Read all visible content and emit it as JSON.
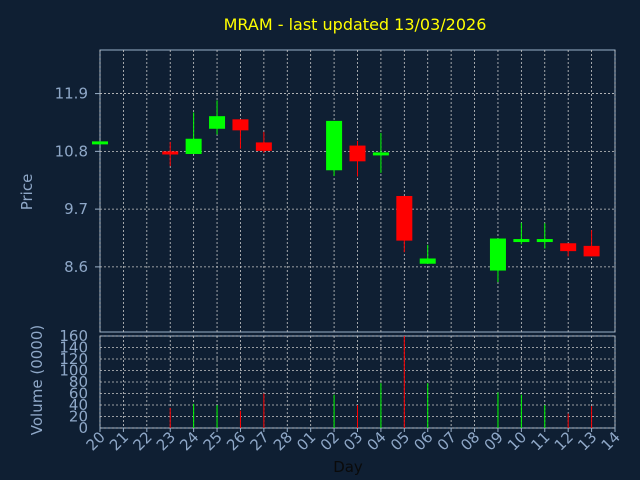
{
  "chart_data": {
    "type": "candlestick",
    "title": "MRAM - last updated 13/03/2026",
    "ylabel": "Price",
    "xlabel": "Day",
    "volume_label": "Volume (0000)",
    "x_ticks": [
      "20",
      "21",
      "22",
      "23",
      "24",
      "25",
      "26",
      "27",
      "28",
      "01",
      "02",
      "03",
      "04",
      "05",
      "06",
      "07",
      "08",
      "09",
      "10",
      "11",
      "12",
      "13",
      "14"
    ],
    "price_ticks": [
      8.6,
      9.7,
      10.8,
      11.9
    ],
    "price_tick_labels": [
      "8.6",
      "9.7",
      "10.8",
      "11.9"
    ],
    "price_range": [
      7.36,
      12.73
    ],
    "volume_ticks": [
      0,
      20,
      40,
      60,
      80,
      100,
      120,
      140,
      160
    ],
    "volume_tick_labels": [
      "0",
      "20",
      "40",
      "60",
      "80",
      "100",
      "120",
      "140",
      "160"
    ],
    "volume_range": [
      0,
      160
    ],
    "grid": true,
    "candles": [
      {
        "day": "20",
        "open": 10.95,
        "close": 10.99,
        "high": 10.99,
        "low": 10.95
      },
      {
        "day": "23",
        "open": 10.8,
        "close": 10.74,
        "high": 10.98,
        "low": 10.52
      },
      {
        "day": "24",
        "open": 10.75,
        "close": 11.04,
        "high": 11.54,
        "low": 10.75
      },
      {
        "day": "25",
        "open": 11.23,
        "close": 11.47,
        "high": 11.77,
        "low": 11.12
      },
      {
        "day": "26",
        "open": 11.41,
        "close": 11.2,
        "high": 11.41,
        "low": 10.85
      },
      {
        "day": "27",
        "open": 10.97,
        "close": 10.81,
        "high": 11.17,
        "low": 10.77
      },
      {
        "day": "02",
        "open": 10.44,
        "close": 11.38,
        "high": 11.38,
        "low": 10.33
      },
      {
        "day": "03",
        "open": 10.91,
        "close": 10.61,
        "high": 11.0,
        "low": 10.32
      },
      {
        "day": "04",
        "open": 10.74,
        "close": 10.78,
        "high": 11.15,
        "low": 10.39
      },
      {
        "day": "05",
        "open": 9.95,
        "close": 9.1,
        "high": 9.95,
        "low": 8.88
      },
      {
        "day": "06",
        "open": 8.66,
        "close": 8.76,
        "high": 9.02,
        "low": 8.66
      },
      {
        "day": "09",
        "open": 8.53,
        "close": 9.14,
        "high": 9.14,
        "low": 8.31
      },
      {
        "day": "10",
        "open": 9.12,
        "close": 9.13,
        "high": 9.44,
        "low": 9.03
      },
      {
        "day": "11",
        "open": 9.12,
        "close": 9.13,
        "high": 9.43,
        "low": 8.95
      },
      {
        "day": "12",
        "open": 9.05,
        "close": 8.9,
        "high": 9.05,
        "low": 8.8
      },
      {
        "day": "13",
        "open": 9.0,
        "close": 8.8,
        "high": 9.3,
        "low": 8.8
      }
    ],
    "volumes": [
      {
        "day": "23",
        "value": 35
      },
      {
        "day": "24",
        "value": 42
      },
      {
        "day": "25",
        "value": 40
      },
      {
        "day": "26",
        "value": 30
      },
      {
        "day": "27",
        "value": 60
      },
      {
        "day": "02",
        "value": 58
      },
      {
        "day": "03",
        "value": 40
      },
      {
        "day": "04",
        "value": 78
      },
      {
        "day": "05",
        "value": 160
      },
      {
        "day": "06",
        "value": 78
      },
      {
        "day": "09",
        "value": 62
      },
      {
        "day": "10",
        "value": 58
      },
      {
        "day": "11",
        "value": 40
      },
      {
        "day": "12",
        "value": 25
      },
      {
        "day": "13",
        "value": 38
      }
    ],
    "colors": {
      "background": "#0f1f33",
      "up": "#00ff00",
      "down": "#ff0000",
      "title": "#ffff00",
      "axis_text": "#8fa8c8",
      "grid": "#c8c8c8",
      "frame": "#9ab0c8"
    }
  }
}
